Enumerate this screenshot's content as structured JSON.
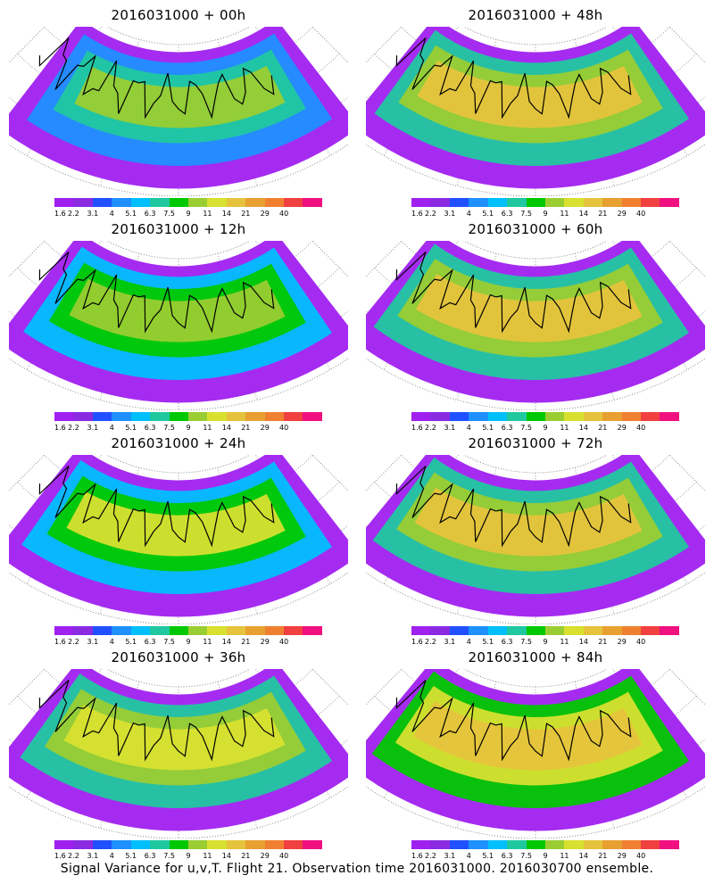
{
  "panels": [
    {
      "title": "2016031000 + 00h",
      "intensity": 0.15
    },
    {
      "title": "2016031000 + 12h",
      "intensity": 0.35
    },
    {
      "title": "2016031000 + 24h",
      "intensity": 0.45
    },
    {
      "title": "2016031000 + 36h",
      "intensity": 0.55
    },
    {
      "title": "2016031000 + 48h",
      "intensity": 0.7
    },
    {
      "title": "2016031000 + 60h",
      "intensity": 0.75
    },
    {
      "title": "2016031000 + 72h",
      "intensity": 0.8
    },
    {
      "title": "2016031000 + 84h",
      "intensity": 0.85
    }
  ],
  "colorbar": {
    "colors": [
      "#a020f0",
      "#8a2be2",
      "#2050ff",
      "#1e90ff",
      "#00bfff",
      "#20c8a0",
      "#00c800",
      "#9acd32",
      "#d8e030",
      "#e6c33c",
      "#e8a030",
      "#f08030",
      "#f04040",
      "#f0107f"
    ],
    "tick_labels": [
      "1.6",
      "2.2",
      "3.1",
      "4",
      "5.1",
      "6.3",
      "7.5",
      "9",
      "11",
      "14",
      "21",
      "29",
      "40"
    ]
  },
  "caption": "Signal Variance for u,v,T. Flight 21. Observation time 2016031000. 2016030700 ensemble."
}
